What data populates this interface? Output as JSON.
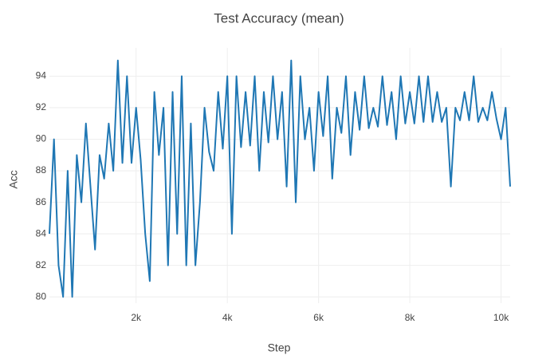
{
  "chart_data": {
    "type": "line",
    "title": "Test Accuracy (mean)",
    "x_label": "Step",
    "y_label": "Acc",
    "x": [
      100,
      200,
      300,
      400,
      500,
      600,
      700,
      800,
      900,
      1000,
      1100,
      1200,
      1300,
      1400,
      1500,
      1600,
      1700,
      1800,
      1900,
      2000,
      2100,
      2200,
      2300,
      2400,
      2500,
      2600,
      2700,
      2800,
      2900,
      3000,
      3100,
      3200,
      3300,
      3400,
      3500,
      3600,
      3700,
      3800,
      3900,
      4000,
      4100,
      4200,
      4300,
      4400,
      4500,
      4600,
      4700,
      4800,
      4900,
      5000,
      5100,
      5200,
      5300,
      5400,
      5500,
      5600,
      5700,
      5800,
      5900,
      6000,
      6100,
      6200,
      6300,
      6400,
      6500,
      6600,
      6700,
      6800,
      6900,
      7000,
      7100,
      7200,
      7300,
      7400,
      7500,
      7600,
      7700,
      7800,
      7900,
      8000,
      8100,
      8200,
      8300,
      8400,
      8500,
      8600,
      8700,
      8800,
      8900,
      9000,
      9100,
      9200,
      9300,
      9400,
      9500,
      9600,
      9700,
      9800,
      9900,
      10000,
      10100,
      10200
    ],
    "series": [
      {
        "name": "Acc",
        "color": "#1f77b4",
        "values": [
          84,
          90,
          82,
          80,
          88,
          80,
          89,
          86,
          91,
          87,
          83,
          89,
          87.5,
          91,
          88,
          95,
          88.5,
          94,
          88.5,
          92,
          88.7,
          84,
          81,
          93,
          89,
          92,
          82,
          93,
          84,
          94,
          82,
          91,
          82,
          86,
          92,
          89.2,
          88,
          93,
          89.4,
          94,
          84,
          94,
          89.5,
          93,
          89.6,
          94,
          88,
          93,
          89.8,
          94,
          90,
          93,
          87,
          95,
          86,
          94,
          90,
          92,
          88,
          93,
          90.2,
          94,
          87.5,
          92,
          90.4,
          94,
          89,
          93,
          90.6,
          94,
          90.7,
          92,
          90.8,
          94,
          90.9,
          93,
          90,
          94,
          91,
          93,
          91,
          94,
          91.1,
          94,
          91.1,
          93,
          91.1,
          92,
          87,
          92,
          91.2,
          93,
          91.2,
          94,
          91.1,
          92,
          91.2,
          93,
          91.3,
          90,
          92,
          87
        ]
      }
    ],
    "xlim": [
      100,
      10200
    ],
    "ylim": [
      79.6,
      95.8
    ],
    "xticks": [
      {
        "value": 2000,
        "label": "2k"
      },
      {
        "value": 4000,
        "label": "4k"
      },
      {
        "value": 6000,
        "label": "6k"
      },
      {
        "value": 8000,
        "label": "8k"
      },
      {
        "value": 10000,
        "label": "10k"
      }
    ],
    "yticks": [
      80,
      82,
      84,
      86,
      88,
      90,
      92,
      94
    ],
    "grid": true
  }
}
